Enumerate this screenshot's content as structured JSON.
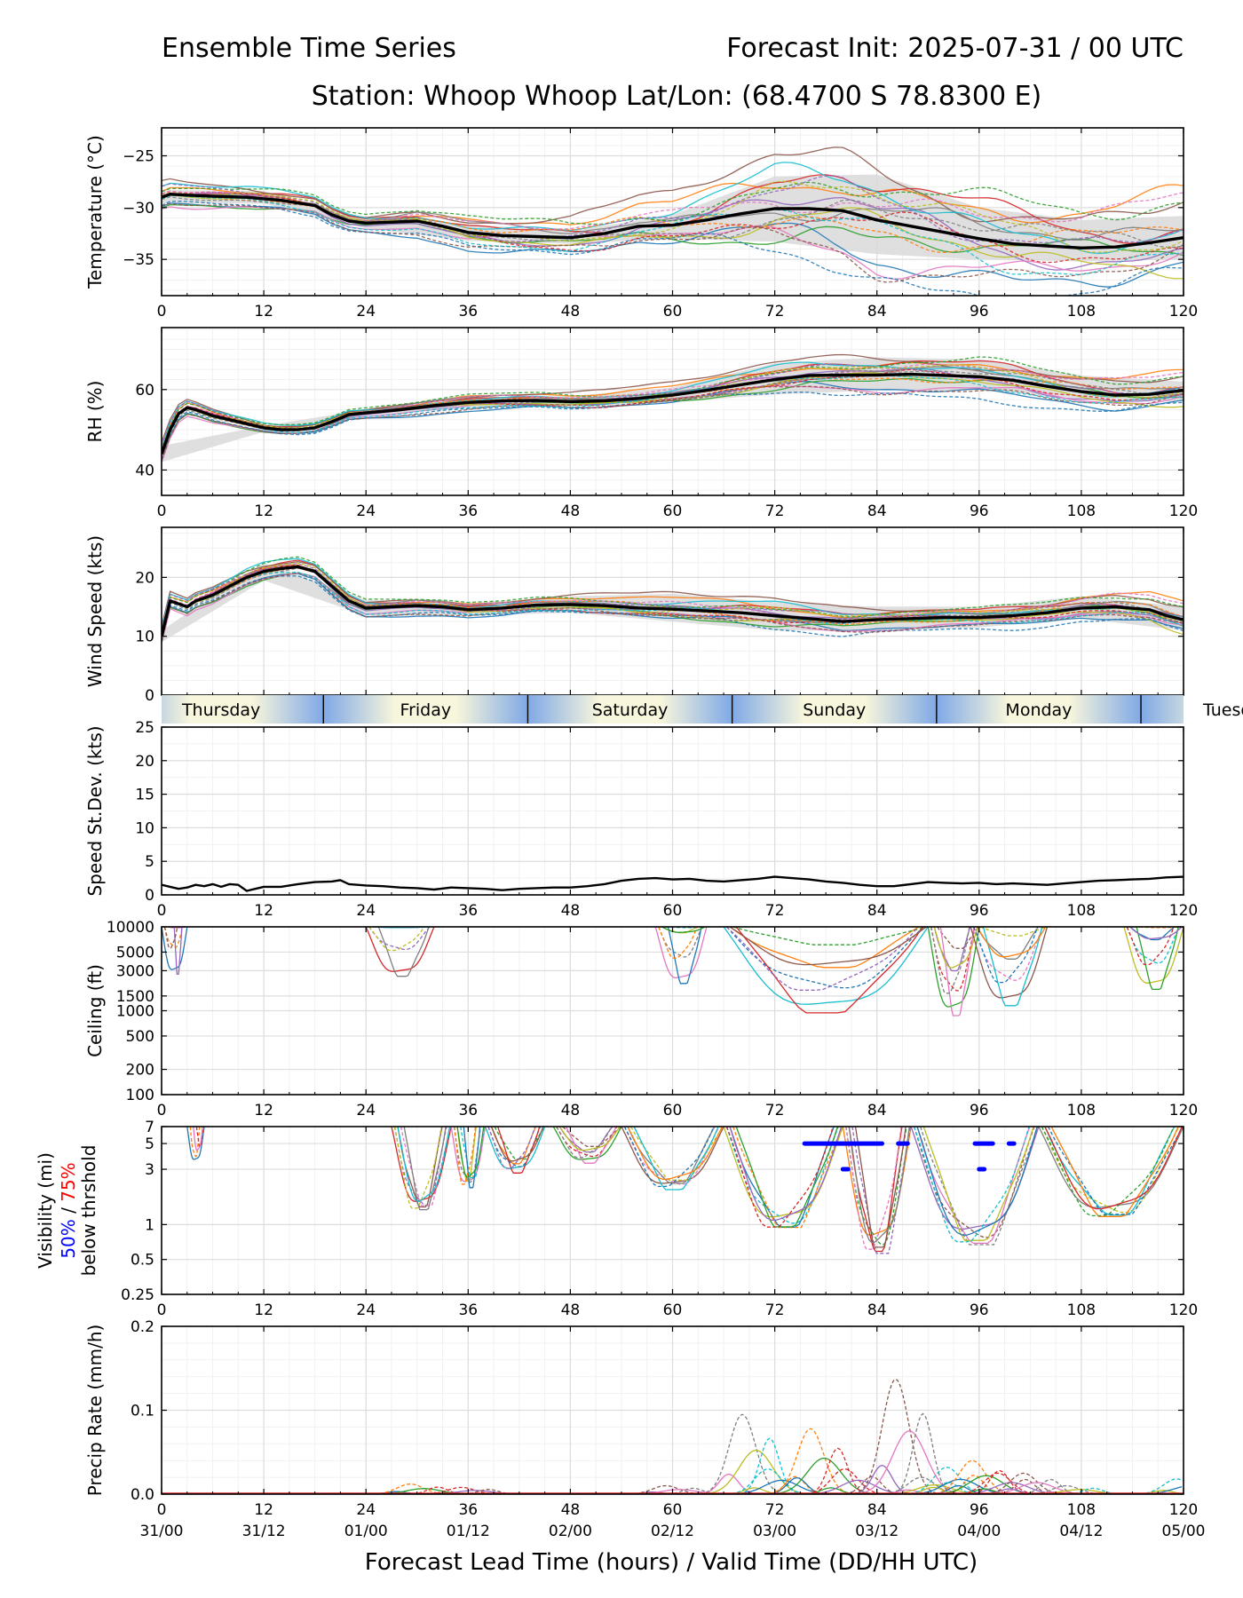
{
  "header": {
    "title_left": "Ensemble Time Series",
    "title_right": "Forecast Init: 2025-07-31 / 00 UTC",
    "station_line": "Station: Whoop Whoop    Lat/Lon: (68.4700 S 78.8300 E)"
  },
  "footer": {
    "xlabel": "Forecast Lead Time (hours) / Valid Time (DD/HH UTC)"
  },
  "colors": {
    "mean": "#000000",
    "spread": "#d9d9d9",
    "members": [
      "#1f77b4",
      "#ff7f0e",
      "#2ca02c",
      "#d62728",
      "#9467bd",
      "#8c564b",
      "#e377c2",
      "#7f7f7f",
      "#bcbd22",
      "#17becf"
    ],
    "vis50": "#0000ff",
    "vis75": "#ff0000",
    "day_light": "#f8f6dc",
    "day_dark": "#7fa9e6"
  },
  "chart_data": {
    "type": "line",
    "x_axis": {
      "lim": [
        0,
        120
      ],
      "ticks": [
        0,
        12,
        24,
        36,
        48,
        60,
        72,
        84,
        96,
        108,
        120
      ],
      "tick_labels": [
        "0",
        "12",
        "24",
        "36",
        "48",
        "60",
        "72",
        "84",
        "96",
        "108",
        "120"
      ],
      "valid_time_labels": [
        "31/00",
        "31/12",
        "01/00",
        "01/12",
        "02/00",
        "02/12",
        "03/00",
        "03/12",
        "04/00",
        "04/12",
        "05/00"
      ]
    },
    "day_band": {
      "days": [
        "Thursday",
        "Friday",
        "Saturday",
        "Sunday",
        "Monday",
        "Tuesday"
      ],
      "day_starts": [
        -5,
        19,
        43,
        67,
        91,
        115
      ]
    },
    "member_count": 20,
    "panels": [
      {
        "id": "temperature",
        "ylabel": "Temperature (°C)",
        "scale": "linear",
        "ylim": [
          -38.5,
          -22.3
        ],
        "yticks": [
          -35,
          -30,
          -25
        ],
        "ytick_labels": [
          "−35",
          "−30",
          "−25"
        ],
        "mean": {
          "x": [
            0,
            1,
            3,
            6,
            10,
            14,
            18,
            20,
            22,
            24,
            27,
            30,
            33,
            36,
            40,
            44,
            48,
            52,
            56,
            60,
            64,
            68,
            72,
            76,
            80,
            84,
            88,
            92,
            96,
            100,
            104,
            108,
            112,
            116,
            120
          ],
          "y": [
            -29,
            -28.7,
            -28.8,
            -28.9,
            -29.0,
            -29.3,
            -29.8,
            -30.7,
            -31.3,
            -31.5,
            -31.4,
            -31.3,
            -31.8,
            -32.4,
            -32.7,
            -32.8,
            -32.9,
            -32.5,
            -31.8,
            -31.7,
            -31.2,
            -30.6,
            -30.1,
            -30.1,
            -30.3,
            -31.2,
            -31.8,
            -32.4,
            -33.0,
            -33.5,
            -33.7,
            -33.9,
            -33.8,
            -33.4,
            -32.9
          ]
        },
        "spread_lower": {
          "x": [
            0,
            12,
            24,
            36,
            48,
            60,
            72,
            84,
            96,
            108,
            120
          ],
          "y": [
            -29.6,
            -29.6,
            -32.0,
            -33.2,
            -33.5,
            -33.0,
            -33.3,
            -34.5,
            -35.0,
            -35.2,
            -35.0
          ]
        },
        "spread_upper": {
          "x": [
            0,
            12,
            24,
            36,
            48,
            60,
            72,
            84,
            96,
            108,
            120
          ],
          "y": [
            -28.3,
            -28.4,
            -31.0,
            -31.6,
            -32.3,
            -30.7,
            -27.0,
            -26.8,
            -30.0,
            -31.2,
            -30.8
          ]
        },
        "member_spread": {
          "x": [
            0,
            12,
            24,
            36,
            48,
            60,
            72,
            84,
            96,
            108,
            120
          ],
          "y": [
            1.4,
            1.1,
            0.8,
            1.6,
            1.8,
            2.5,
            4.6,
            5.4,
            4.5,
            3.8,
            4.4
          ]
        }
      },
      {
        "id": "rh",
        "ylabel": "RH (%)",
        "scale": "linear",
        "ylim": [
          33.7,
          75.4
        ],
        "yticks": [
          40,
          60
        ],
        "ytick_labels": [
          "40",
          "60"
        ],
        "mean": {
          "x": [
            0,
            1,
            2,
            3,
            4,
            6,
            8,
            10,
            12,
            14,
            16,
            18,
            20,
            22,
            24,
            28,
            32,
            36,
            40,
            44,
            48,
            52,
            56,
            60,
            64,
            68,
            72,
            76,
            80,
            84,
            88,
            92,
            96,
            100,
            104,
            108,
            112,
            116,
            120
          ],
          "y": [
            44,
            50,
            54,
            55.5,
            55,
            53.5,
            52.5,
            51.5,
            50.5,
            50,
            50,
            50.5,
            52,
            53.8,
            54.2,
            55,
            56,
            56.8,
            57.2,
            57.3,
            57,
            57.2,
            57.8,
            58.6,
            59.8,
            61.2,
            62.5,
            63.5,
            63.6,
            63.6,
            63.8,
            63.5,
            63.2,
            62.3,
            60.8,
            59.5,
            58.6,
            58.8,
            59.8
          ]
        },
        "spread_lower": {
          "x": [
            0,
            12,
            24,
            36,
            48,
            60,
            72,
            84,
            96,
            108,
            120
          ],
          "y": [
            42,
            49.5,
            53.5,
            55.5,
            55.8,
            56.8,
            58.8,
            59.8,
            59.8,
            57.8,
            57.0
          ]
        },
        "spread_upper": {
          "x": [
            0,
            12,
            24,
            36,
            48,
            60,
            72,
            84,
            96,
            108,
            120
          ],
          "y": [
            46,
            51,
            55,
            58,
            58.4,
            60.5,
            66.5,
            68.0,
            67.5,
            63.5,
            62.0
          ]
        },
        "member_spread": {
          "x": [
            0,
            12,
            24,
            36,
            48,
            60,
            72,
            84,
            96,
            108,
            120
          ],
          "y": [
            2.5,
            1.2,
            1.2,
            2.0,
            2.0,
            2.5,
            3.8,
            4.5,
            4.5,
            4.0,
            4.5
          ]
        }
      },
      {
        "id": "wind",
        "ylabel": "Wind Speed (kts)",
        "scale": "linear",
        "ylim": [
          0,
          28.5
        ],
        "yticks": [
          0,
          10,
          20
        ],
        "ytick_labels": [
          "0",
          "10",
          "20"
        ],
        "mean": {
          "x": [
            0,
            1,
            2,
            3,
            4,
            6,
            8,
            10,
            12,
            14,
            16,
            18,
            20,
            22,
            24,
            27,
            30,
            33,
            36,
            40,
            44,
            48,
            52,
            56,
            60,
            64,
            68,
            72,
            76,
            80,
            84,
            88,
            92,
            96,
            100,
            104,
            108,
            112,
            116,
            118,
            120
          ],
          "y": [
            10,
            16,
            15.5,
            15,
            16,
            17,
            18.5,
            20,
            21,
            21.5,
            21.8,
            21,
            18.5,
            16,
            14.8,
            15,
            15.2,
            15,
            14.5,
            14.8,
            15.3,
            15.4,
            15.2,
            14.8,
            14.6,
            14.3,
            14,
            13.5,
            13,
            12.5,
            12.8,
            13,
            13.2,
            13.2,
            13.5,
            14,
            14.8,
            15,
            14.5,
            13.5,
            12.8
          ]
        },
        "spread_lower": {
          "x": [
            0,
            12,
            24,
            36,
            48,
            60,
            72,
            84,
            96,
            108,
            120
          ],
          "y": [
            9,
            19.5,
            13.5,
            13.5,
            14,
            12.5,
            11,
            11,
            11.5,
            13,
            11
          ]
        },
        "spread_upper": {
          "x": [
            0,
            12,
            24,
            36,
            48,
            60,
            72,
            84,
            96,
            108,
            120
          ],
          "y": [
            11,
            22.5,
            16.2,
            15.6,
            16.8,
            17.2,
            15.8,
            15,
            15,
            16.8,
            15
          ]
        },
        "member_spread": {
          "x": [
            0,
            12,
            24,
            36,
            48,
            60,
            72,
            84,
            96,
            108,
            120
          ],
          "y": [
            1.5,
            1.6,
            1.4,
            1.2,
            1.4,
            2.2,
            2.6,
            1.9,
            1.6,
            2.0,
            2.8
          ]
        }
      },
      {
        "id": "speed_stdev",
        "ylabel": "Speed St.Dev. (kts)",
        "scale": "linear",
        "ylim": [
          0,
          25
        ],
        "yticks": [
          0,
          5,
          10,
          15,
          20,
          25
        ],
        "ytick_labels": [
          "0",
          "5",
          "10",
          "15",
          "20",
          "25"
        ],
        "mean": {
          "x": [
            0,
            1,
            2,
            3,
            4,
            5,
            6,
            7,
            8,
            9,
            10,
            11,
            12,
            14,
            16,
            18,
            20,
            21,
            22,
            24,
            26,
            28,
            30,
            32,
            34,
            36,
            38,
            40,
            42,
            44,
            46,
            48,
            50,
            52,
            54,
            56,
            58,
            60,
            62,
            64,
            66,
            68,
            70,
            72,
            74,
            76,
            78,
            80,
            82,
            84,
            86,
            88,
            90,
            92,
            94,
            96,
            98,
            100,
            102,
            104,
            106,
            108,
            110,
            112,
            114,
            116,
            118,
            120
          ],
          "y": [
            1.5,
            1.2,
            0.9,
            1.1,
            1.5,
            1.3,
            1.6,
            1.2,
            1.6,
            1.5,
            0.6,
            0.9,
            1.2,
            1.2,
            1.6,
            1.9,
            2.0,
            2.2,
            1.6,
            1.4,
            1.3,
            1.1,
            1.0,
            0.8,
            1.1,
            1.0,
            0.9,
            0.7,
            0.9,
            1.0,
            1.1,
            1.1,
            1.3,
            1.6,
            2.1,
            2.4,
            2.5,
            2.3,
            2.4,
            2.1,
            2.0,
            2.2,
            2.4,
            2.7,
            2.5,
            2.3,
            2.0,
            1.8,
            1.5,
            1.3,
            1.3,
            1.6,
            1.9,
            1.8,
            1.7,
            1.8,
            1.6,
            1.7,
            1.6,
            1.5,
            1.7,
            1.9,
            2.1,
            2.2,
            2.3,
            2.4,
            2.6,
            2.7
          ]
        }
      },
      {
        "id": "ceiling",
        "ylabel": "Ceiling (ft)",
        "scale": "log",
        "ylim": [
          100,
          10000
        ],
        "yticks": [
          100,
          200,
          500,
          1000,
          1500,
          3000,
          5000,
          10000
        ],
        "ytick_labels": [
          "100",
          "200",
          "500",
          "1000",
          "1500",
          "3000",
          "5000",
          "10000"
        ],
        "member_windows": [
          [
            0,
            3,
            8000
          ],
          [
            24,
            32,
            7500
          ],
          [
            58,
            64,
            6000
          ],
          [
            66,
            90,
            2400
          ],
          [
            90,
            96,
            2200
          ],
          [
            95,
            104,
            3000
          ],
          [
            113,
            120,
            5000
          ]
        ]
      },
      {
        "id": "visibility",
        "ylabel": "Visibility (mi)",
        "ylabel_pct50": "50%",
        "ylabel_pct75": "75%",
        "ylabel_suffix": "below thrshold",
        "scale": "log",
        "ylim": [
          0.25,
          7
        ],
        "yticks": [
          0.25,
          0.5,
          1,
          3,
          5,
          7
        ],
        "ytick_labels": [
          "0.25",
          "0.5",
          "1",
          "3",
          "5",
          "7"
        ],
        "member_windows": [
          [
            3,
            5,
            4
          ],
          [
            27,
            34,
            1.4
          ],
          [
            34,
            38,
            2.3
          ],
          [
            38,
            45,
            3.2
          ],
          [
            46,
            54,
            4
          ],
          [
            54,
            66,
            2.2
          ],
          [
            66,
            80,
            0.95
          ],
          [
            80,
            88,
            0.6
          ],
          [
            88,
            103,
            0.7
          ],
          [
            103,
            120,
            1.2
          ]
        ],
        "below_50": [
          {
            "x0": 75.5,
            "x1": 84.5,
            "y": 5
          },
          {
            "x0": 86.5,
            "x1": 87.5,
            "y": 5
          },
          {
            "x0": 95.5,
            "x1": 97.5,
            "y": 5
          },
          {
            "x0": 99.5,
            "x1": 100,
            "y": 5
          },
          {
            "x0": 80,
            "x1": 80.5,
            "y": 3
          },
          {
            "x0": 96,
            "x1": 96.5,
            "y": 3
          }
        ]
      },
      {
        "id": "precip",
        "ylabel": "Precip Rate (mm/h)",
        "scale": "linear",
        "ylim": [
          0,
          0.2
        ],
        "yticks": [
          0.0,
          0.1,
          0.2
        ],
        "ytick_labels": [
          "0.0",
          "0.1",
          "0.2"
        ],
        "peaks": [
          [
            30,
            0.012
          ],
          [
            36,
            0.008
          ],
          [
            60,
            0.01
          ],
          [
            69,
            0.095
          ],
          [
            72,
            0.03
          ],
          [
            77,
            0.078
          ],
          [
            81,
            0.03
          ],
          [
            87,
            0.137
          ],
          [
            90,
            0.02
          ],
          [
            93,
            0.032
          ],
          [
            96,
            0.04
          ],
          [
            99,
            0.025
          ],
          [
            102,
            0.025
          ],
          [
            107,
            0.01
          ],
          [
            120,
            0.018
          ]
        ]
      }
    ]
  }
}
